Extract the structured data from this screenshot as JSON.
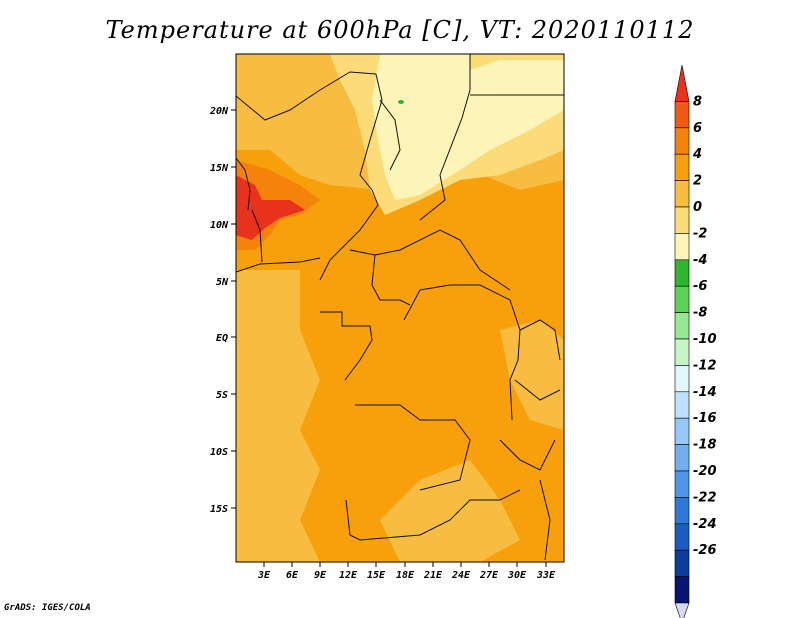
{
  "title": "Temperature at 600hPa [C], VT: 2020110112",
  "footer": "GrADS: IGES/COLA",
  "map": {
    "lon_ticks": [
      "3E",
      "6E",
      "9E",
      "12E",
      "15E",
      "18E",
      "21E",
      "24E",
      "27E",
      "30E",
      "33E"
    ],
    "lat_ticks": [
      "20N",
      "15N",
      "10N",
      "5N",
      "EQ",
      "5S",
      "10S",
      "15S"
    ]
  },
  "colorbar": {
    "labels": [
      "8",
      "6",
      "4",
      "2",
      "0",
      "-2",
      "-4",
      "-6",
      "-8",
      "-10",
      "-12",
      "-14",
      "-16",
      "-18",
      "-20",
      "-22",
      "-24",
      "-26"
    ],
    "colors": [
      "#e8321c",
      "#f05a12",
      "#f5820a",
      "#f7a00c",
      "#f8bc40",
      "#fbdc78",
      "#fdf5b8",
      "#2fb52f",
      "#5bd35b",
      "#96e896",
      "#c6f6c6",
      "#e2f6ff",
      "#bde0ff",
      "#96c8f8",
      "#72aef0",
      "#4f96e8",
      "#2e78d8",
      "#1a5cc0",
      "#0c3d9c",
      "#061472",
      "#d8d8f0"
    ]
  }
}
